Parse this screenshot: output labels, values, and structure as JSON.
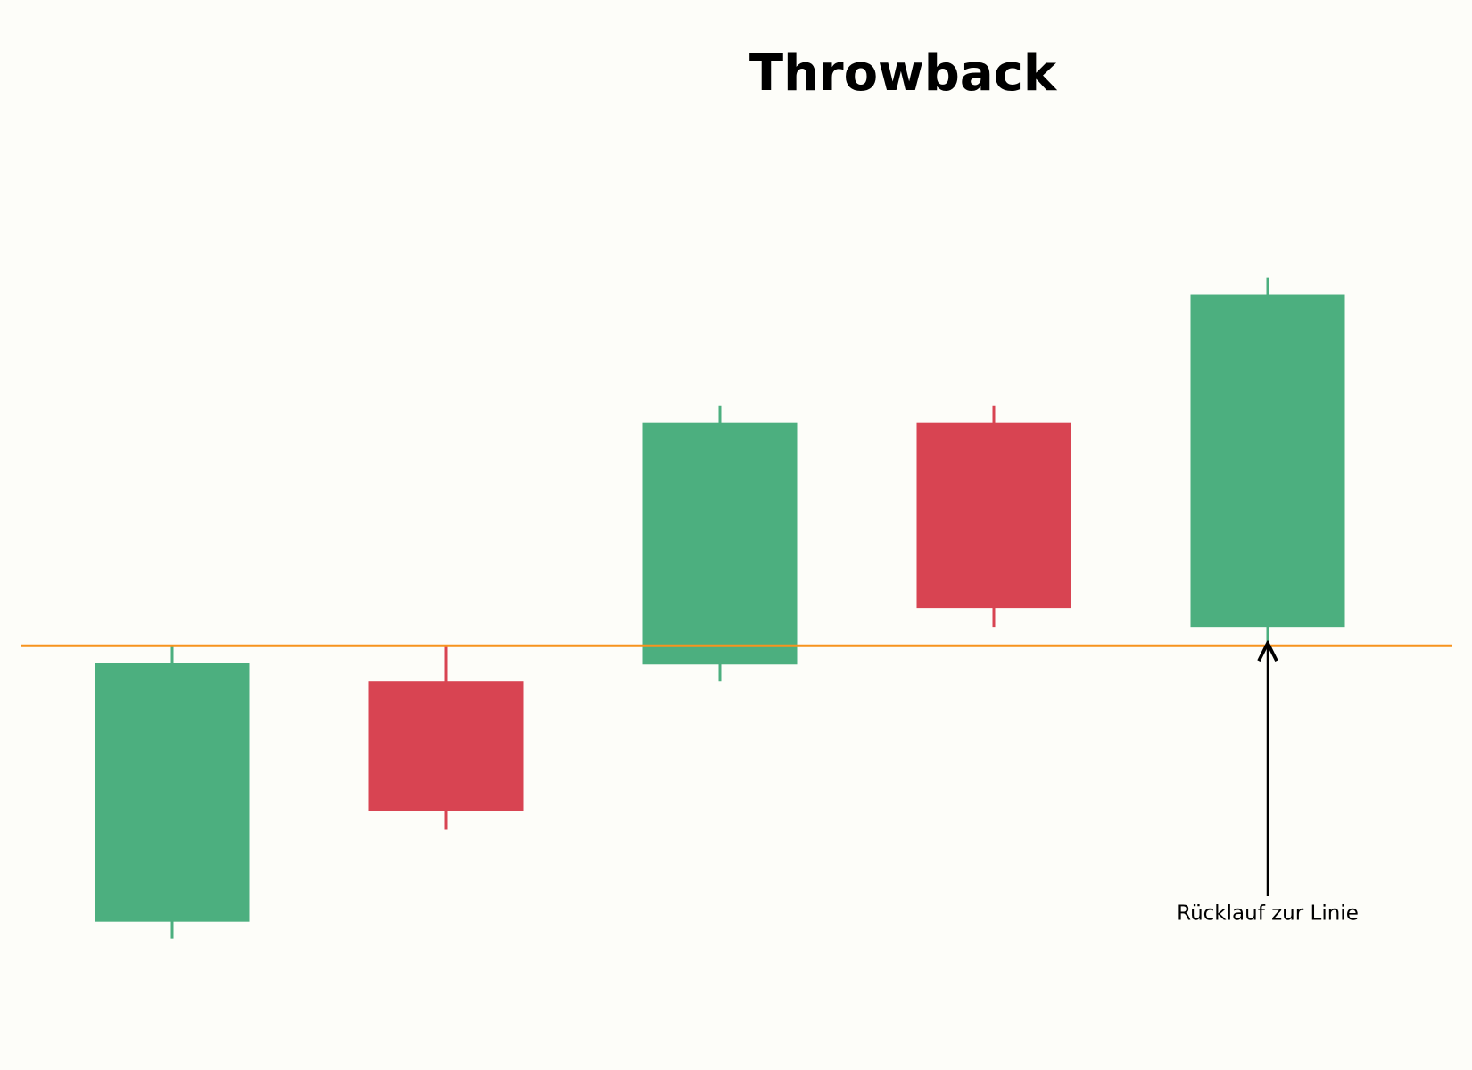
{
  "chart_data": {
    "type": "candlestick",
    "title": "Throwback",
    "open": [
      85.3,
      98.1,
      99.0,
      111.9,
      101.0
    ],
    "high": [
      100.0,
      100.0,
      112.8,
      112.8,
      119.6
    ],
    "low": [
      84.4,
      90.2,
      98.1,
      101.0,
      100.0
    ],
    "close": [
      99.1,
      91.2,
      111.9,
      102.0,
      118.7
    ],
    "up_color": "#4caf7f",
    "down_color": "#d84452",
    "level": 100.0,
    "level_color": "#f7931e",
    "ylim": [
      77.4,
      134.4
    ],
    "annotation": "Rücklauf zur Linie"
  }
}
